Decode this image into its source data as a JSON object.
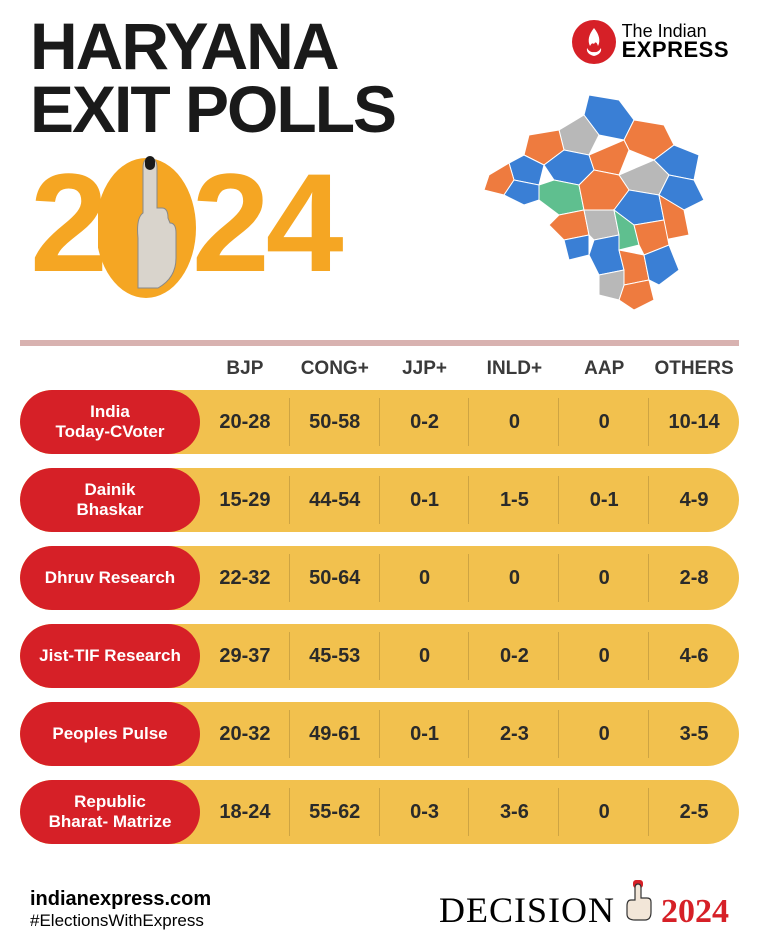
{
  "colors": {
    "title_black": "#1a1a1a",
    "year_orange": "#f5a623",
    "divider": "#d8b2b0",
    "row_bg": "#f2c14e",
    "row_label_bg": "#d62027",
    "cell_text": "#2a2a2a",
    "header_text": "#3a3a3a",
    "logo_bg": "#d62027",
    "decision_year": "#d62027",
    "map_orange": "#ee7b3f",
    "map_blue": "#3a7fd5",
    "map_grey": "#b8b8b8",
    "map_green": "#5fbf8f"
  },
  "title": {
    "line1": "HARYANA",
    "line2": "EXIT POLLS"
  },
  "year": {
    "d1": "2",
    "d3": "2",
    "d4": "4"
  },
  "logo": {
    "line1": "The Indian",
    "line2": "EXPRESS"
  },
  "columns": [
    "BJP",
    "CONG+",
    "JJP+",
    "INLD+",
    "AAP",
    "OTHERS"
  ],
  "rows": [
    {
      "label": "India\nToday-CVoter",
      "cells": [
        "20-28",
        "50-58",
        "0-2",
        "0",
        "0",
        "10-14"
      ]
    },
    {
      "label": "Dainik\nBhaskar",
      "cells": [
        "15-29",
        "44-54",
        "0-1",
        "1-5",
        "0-1",
        "4-9"
      ]
    },
    {
      "label": "Dhruv Research",
      "cells": [
        "22-32",
        "50-64",
        "0",
        "0",
        "0",
        "2-8"
      ]
    },
    {
      "label": "Jist-TIF Research",
      "cells": [
        "29-37",
        "45-53",
        "0",
        "0-2",
        "0",
        "4-6"
      ]
    },
    {
      "label": "Peoples Pulse",
      "cells": [
        "20-32",
        "49-61",
        "0-1",
        "2-3",
        "0",
        "3-5"
      ]
    },
    {
      "label": "Republic\nBharat- Matrize",
      "cells": [
        "18-24",
        "55-62",
        "0-3",
        "3-6",
        "0",
        "2-5"
      ]
    }
  ],
  "footer": {
    "site": "indianexpress.com",
    "hashtag": "#ElectionsWithExpress",
    "decision": "DECISION",
    "year": "2024"
  }
}
